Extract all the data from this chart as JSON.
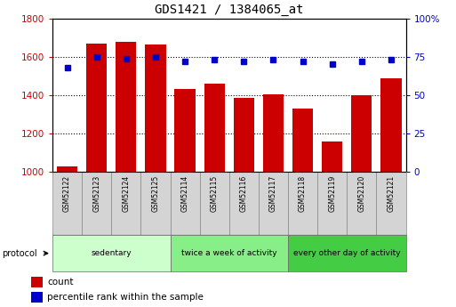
{
  "title": "GDS1421 / 1384065_at",
  "samples": [
    "GSM52122",
    "GSM52123",
    "GSM52124",
    "GSM52125",
    "GSM52114",
    "GSM52115",
    "GSM52116",
    "GSM52117",
    "GSM52118",
    "GSM52119",
    "GSM52120",
    "GSM52121"
  ],
  "counts": [
    1030,
    1670,
    1680,
    1665,
    1430,
    1460,
    1385,
    1405,
    1330,
    1160,
    1400,
    1490
  ],
  "percentiles": [
    68,
    75,
    74,
    75,
    72,
    73,
    72,
    73,
    72,
    70,
    72,
    73
  ],
  "ylim_left": [
    1000,
    1800
  ],
  "ylim_right": [
    0,
    100
  ],
  "yticks_left": [
    1000,
    1200,
    1400,
    1600,
    1800
  ],
  "yticks_right": [
    0,
    25,
    50,
    75,
    100
  ],
  "bar_color": "#cc0000",
  "dot_color": "#0000cc",
  "groups": [
    {
      "label": "sedentary",
      "start": 0,
      "end": 4,
      "color": "#ccffcc"
    },
    {
      "label": "twice a week of activity",
      "start": 4,
      "end": 8,
      "color": "#88ee88"
    },
    {
      "label": "every other day of activity",
      "start": 8,
      "end": 12,
      "color": "#44cc44"
    }
  ],
  "protocol_label": "protocol",
  "legend_items": [
    {
      "label": "count",
      "color": "#cc0000"
    },
    {
      "label": "percentile rank within the sample",
      "color": "#0000cc"
    }
  ]
}
